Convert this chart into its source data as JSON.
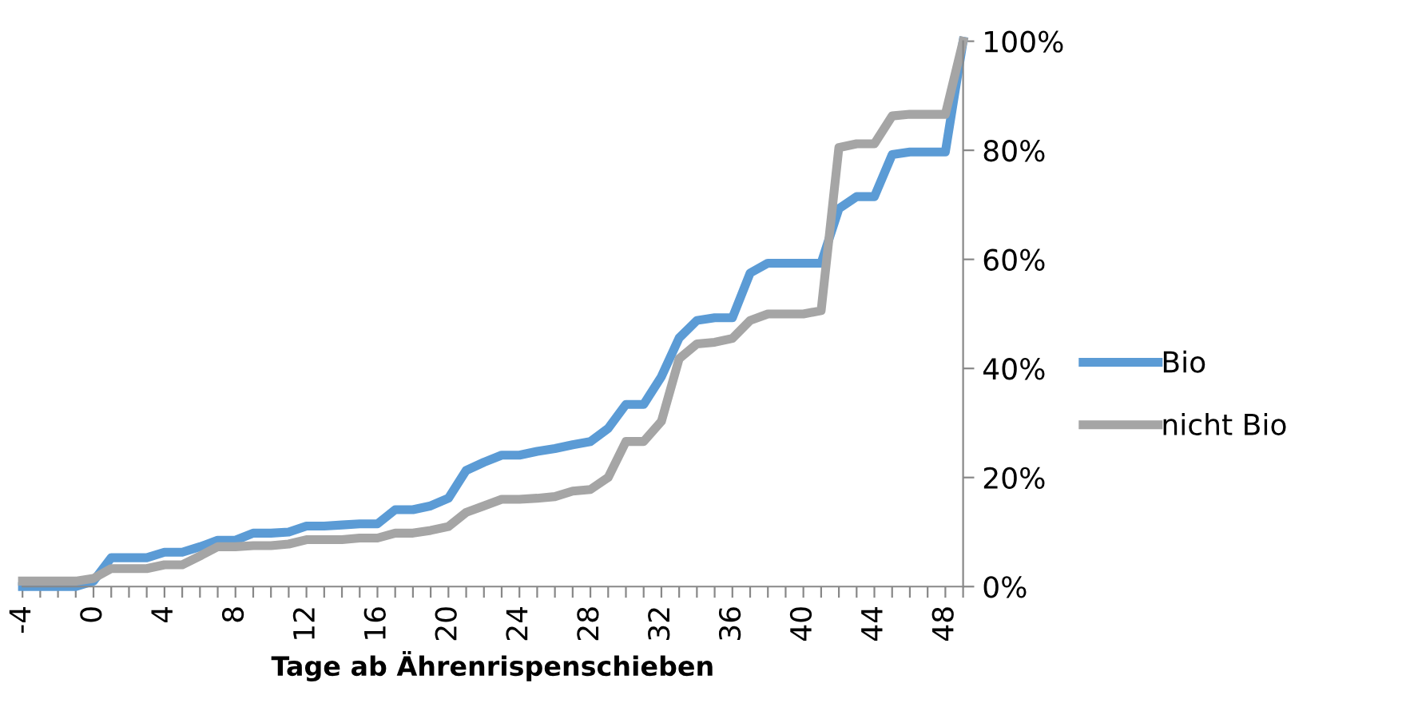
{
  "chart_data": {
    "type": "line",
    "xlabel": "Tage ab Ährenrispenschieben",
    "categories": [
      "-4",
      null,
      null,
      null,
      "0",
      null,
      null,
      null,
      "4",
      null,
      null,
      null,
      "8",
      null,
      null,
      null,
      "12",
      null,
      null,
      null,
      "16",
      null,
      null,
      null,
      "20",
      null,
      null,
      null,
      "24",
      null,
      null,
      null,
      "28",
      null,
      null,
      null,
      "32",
      null,
      null,
      null,
      "36",
      null,
      null,
      null,
      "40",
      null,
      null,
      null,
      "44",
      null,
      null,
      null,
      "48",
      null
    ],
    "series": [
      {
        "name": "Bio",
        "color": "#5b9bd5",
        "values": [
          0,
          0,
          0,
          0,
          1,
          5.3,
          5.3,
          5.3,
          6.3,
          6.3,
          7.3,
          8.5,
          8.5,
          9.8,
          9.8,
          10,
          11.1,
          11.1,
          11.3,
          11.5,
          11.5,
          14.1,
          14.1,
          14.8,
          16.2,
          21.3,
          22.8,
          24.1,
          24.1,
          24.8,
          25.3,
          26,
          26.6,
          29,
          33.4,
          33.4,
          38.5,
          45.6,
          48.8,
          49.3,
          49.3,
          57.5,
          59.3,
          59.3,
          59.3,
          59.3,
          69.3,
          71.5,
          71.5,
          79.2,
          79.7,
          79.7,
          79.7,
          100
        ]
      },
      {
        "name": "nicht Bio",
        "color": "#a5a5a5",
        "values": [
          1,
          1,
          1,
          1,
          1.5,
          3.3,
          3.3,
          3.3,
          4,
          4,
          5.6,
          7.3,
          7.3,
          7.5,
          7.5,
          7.8,
          8.6,
          8.6,
          8.6,
          8.9,
          8.9,
          9.8,
          9.8,
          10.3,
          11,
          13.6,
          14.8,
          16,
          16,
          16.2,
          16.5,
          17.5,
          17.8,
          20,
          26.6,
          26.6,
          30.3,
          41.8,
          44.5,
          44.8,
          45.5,
          48.8,
          50,
          50,
          50,
          50.6,
          80.5,
          81.2,
          81.2,
          86.3,
          86.6,
          86.6,
          86.6,
          100
        ]
      }
    ],
    "ylim": [
      0,
      100
    ],
    "yticks": [
      {
        "value": 0,
        "label": "0%"
      },
      {
        "value": 20,
        "label": "20%"
      },
      {
        "value": 40,
        "label": "40%"
      },
      {
        "value": 60,
        "label": "60%"
      },
      {
        "value": 80,
        "label": "80%"
      },
      {
        "value": 100,
        "label": "100%"
      }
    ],
    "grid": false,
    "legend": "right",
    "marker": "none",
    "line_style": "solid"
  }
}
